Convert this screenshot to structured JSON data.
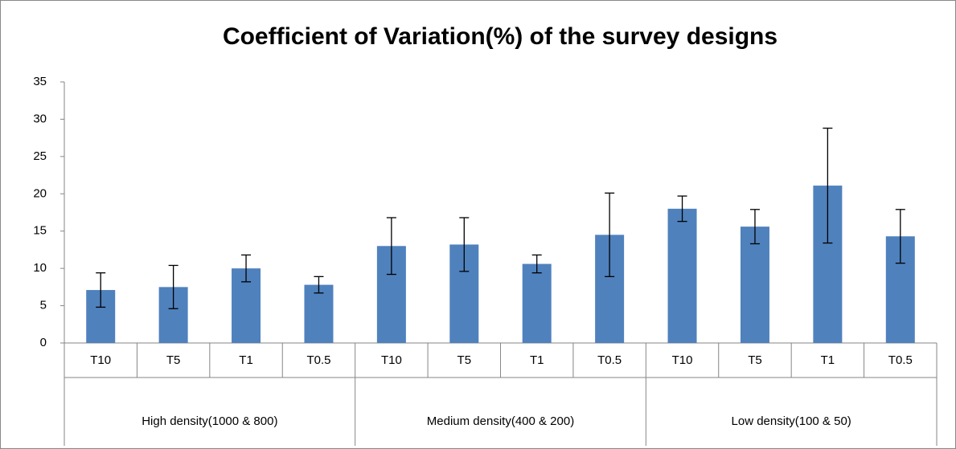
{
  "chart_data": {
    "type": "bar",
    "title": "Coefficient of Variation(%) of the survey designs",
    "categories": [
      "T10",
      "T5",
      "T1",
      "T0.5",
      "T10",
      "T5",
      "T1",
      "T0.5",
      "T10",
      "T5",
      "T1",
      "T0.5"
    ],
    "groups": [
      "High density(1000 & 800)",
      "Medium density(400 & 200)",
      "Low density(100 & 50)"
    ],
    "values": [
      7.1,
      7.5,
      10.0,
      7.8,
      13.0,
      13.2,
      10.6,
      14.5,
      18.0,
      15.6,
      21.1,
      14.3
    ],
    "errors": [
      2.3,
      2.9,
      1.8,
      1.1,
      3.8,
      3.6,
      1.2,
      5.6,
      1.7,
      2.3,
      7.7,
      3.6
    ],
    "color": "#4f81bd",
    "ylim": [
      0,
      35
    ],
    "yticks": [
      0,
      5,
      10,
      15,
      20,
      25,
      30,
      35
    ],
    "grid": false
  }
}
